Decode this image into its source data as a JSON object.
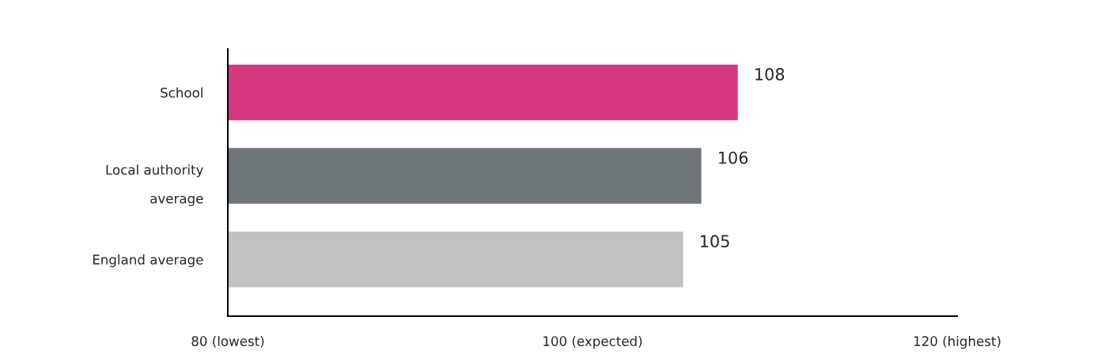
{
  "chart_data": {
    "type": "bar",
    "orientation": "horizontal",
    "categories": [
      "School",
      "Local authority\naverage",
      "England average"
    ],
    "values": [
      108,
      106,
      105
    ],
    "colors": [
      "#d6387f",
      "#6e7679",
      "#c0c1c3"
    ],
    "xlim": [
      80,
      120
    ],
    "xticks": [
      {
        "value": 80,
        "label": "80 (lowest)"
      },
      {
        "value": 100,
        "label": "100 (expected)"
      },
      {
        "value": 120,
        "label": "120 (highest)"
      }
    ],
    "data_labels": true,
    "grid": false,
    "legend": false
  }
}
